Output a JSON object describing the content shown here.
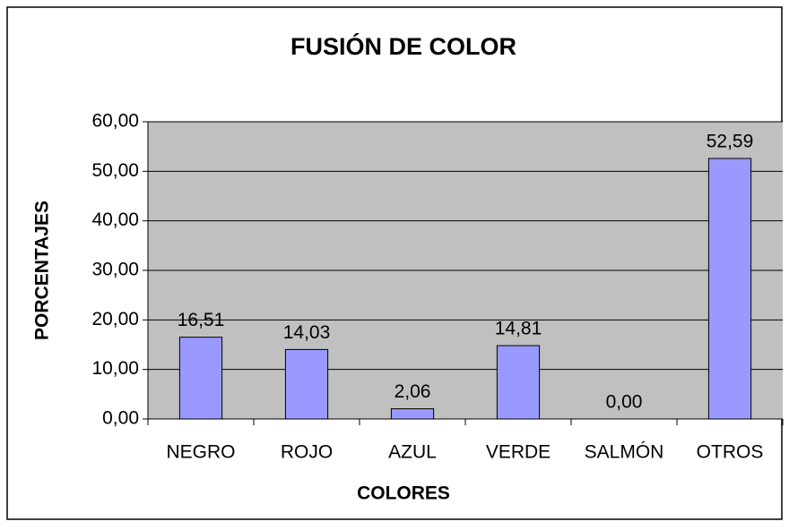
{
  "chart_data": {
    "type": "bar",
    "title": "FUSIÓN DE COLOR",
    "x_label": "COLORES",
    "y_label": "PORCENTAJES",
    "categories": [
      "NEGRO",
      "ROJO",
      "AZUL",
      "VERDE",
      "SALMÓN",
      "OTROS"
    ],
    "values": [
      16.51,
      14.03,
      2.06,
      14.81,
      0.0,
      52.59
    ],
    "value_labels": [
      "16,51",
      "14,03",
      "2,06",
      "14,81",
      "0,00",
      "52,59"
    ],
    "color": "#9999ff",
    "ylim": [
      0,
      60
    ],
    "yticks": [
      {
        "value": 0,
        "label": "0,00"
      },
      {
        "value": 10,
        "label": "10,00"
      },
      {
        "value": 20,
        "label": "20,00"
      },
      {
        "value": 30,
        "label": "30,00"
      },
      {
        "value": 40,
        "label": "40,00"
      },
      {
        "value": 50,
        "label": "50,00"
      },
      {
        "value": 60,
        "label": "60,00"
      }
    ],
    "grid": true
  }
}
